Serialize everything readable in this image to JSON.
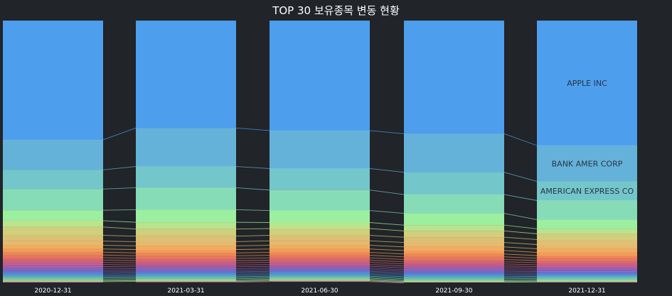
{
  "chart_data": {
    "type": "stacked-bar",
    "title": "TOP 30 보유종목 변동 현황",
    "categories": [
      "2020-12-31",
      "2021-03-31",
      "2021-06-30",
      "2021-09-30",
      "2021-12-31"
    ],
    "ylim": [
      0,
      1
    ],
    "value_unit": "share of portfolio",
    "series": [
      {
        "name": "APPLE INC",
        "color": "#4d9eed",
        "values": [
          0.455,
          0.41,
          0.42,
          0.432,
          0.477
        ],
        "show_label": true
      },
      {
        "name": "BANK AMER CORP",
        "color": "#64b2d9",
        "values": [
          0.115,
          0.147,
          0.145,
          0.147,
          0.137
        ],
        "show_label": true
      },
      {
        "name": "AMERICAN EXPRESS CO",
        "color": "#73c6ca",
        "values": [
          0.073,
          0.081,
          0.082,
          0.085,
          0.073
        ],
        "show_label": true
      },
      {
        "name": "",
        "color": "#86dcb6",
        "values": [
          0.081,
          0.084,
          0.078,
          0.072,
          0.073
        ]
      },
      {
        "name": "",
        "color": "#9bef9f",
        "values": [
          0.04,
          0.048,
          0.046,
          0.045,
          0.035
        ]
      },
      {
        "name": "",
        "color": "#b9e48d",
        "values": [
          0.024,
          0.026,
          0.023,
          0.022,
          0.019
        ]
      },
      {
        "name": "",
        "color": "#cfcf7c",
        "values": [
          0.032,
          0.027,
          0.026,
          0.024,
          0.022
        ]
      },
      {
        "name": "",
        "color": "#dcc073",
        "values": [
          0.022,
          0.021,
          0.021,
          0.02,
          0.019
        ]
      },
      {
        "name": "",
        "color": "#e8b86c",
        "values": [
          0.016,
          0.016,
          0.017,
          0.017,
          0.016
        ]
      },
      {
        "name": "",
        "color": "#f0ad5e",
        "values": [
          0.014,
          0.014,
          0.014,
          0.014,
          0.014
        ]
      },
      {
        "name": "",
        "color": "#f39b57",
        "values": [
          0.012,
          0.013,
          0.013,
          0.013,
          0.012
        ]
      },
      {
        "name": "",
        "color": "#ef8753",
        "values": [
          0.011,
          0.011,
          0.011,
          0.011,
          0.01
        ]
      },
      {
        "name": "",
        "color": "#e8765a",
        "values": [
          0.01,
          0.01,
          0.01,
          0.01,
          0.009
        ]
      },
      {
        "name": "",
        "color": "#df6867",
        "values": [
          0.009,
          0.009,
          0.009,
          0.009,
          0.008
        ]
      },
      {
        "name": "",
        "color": "#d35f77",
        "values": [
          0.009,
          0.008,
          0.008,
          0.008,
          0.008
        ]
      },
      {
        "name": "",
        "color": "#c35a89",
        "values": [
          0.008,
          0.008,
          0.008,
          0.008,
          0.007
        ]
      },
      {
        "name": "",
        "color": "#b0589b",
        "values": [
          0.008,
          0.007,
          0.007,
          0.007,
          0.007
        ]
      },
      {
        "name": "",
        "color": "#9b5aad",
        "values": [
          0.007,
          0.007,
          0.007,
          0.007,
          0.006
        ]
      },
      {
        "name": "",
        "color": "#845fbf",
        "values": [
          0.007,
          0.006,
          0.006,
          0.006,
          0.006
        ]
      },
      {
        "name": "",
        "color": "#6e69cd",
        "values": [
          0.006,
          0.006,
          0.006,
          0.006,
          0.005
        ]
      },
      {
        "name": "",
        "color": "#5a78d5",
        "values": [
          0.006,
          0.005,
          0.005,
          0.005,
          0.005
        ]
      },
      {
        "name": "",
        "color": "#4f8ad6",
        "values": [
          0.005,
          0.005,
          0.005,
          0.005,
          0.005
        ]
      },
      {
        "name": "",
        "color": "#4d9cd0",
        "values": [
          0.005,
          0.005,
          0.005,
          0.005,
          0.004
        ]
      },
      {
        "name": "",
        "color": "#52adc4",
        "values": [
          0.004,
          0.004,
          0.004,
          0.004,
          0.004
        ]
      },
      {
        "name": "",
        "color": "#5dbdb6",
        "values": [
          0.004,
          0.004,
          0.004,
          0.004,
          0.004
        ]
      },
      {
        "name": "",
        "color": "#6dcaa6",
        "values": [
          0.004,
          0.004,
          0.004,
          0.004,
          0.004
        ]
      },
      {
        "name": "",
        "color": "#82d596",
        "values": [
          0.004,
          0.004,
          0.004,
          0.003,
          0.003
        ]
      },
      {
        "name": "",
        "color": "#9ddc87",
        "values": [
          0.003,
          0.003,
          0.003,
          0.003,
          0.003
        ]
      },
      {
        "name": "",
        "color": "#bcdc7c",
        "values": [
          0.003,
          0.003,
          0.003,
          0.003,
          0.003
        ]
      },
      {
        "name": "",
        "color": "#c05fa8",
        "values": [
          0.003,
          0.003,
          0.003,
          0.003,
          0.003
        ]
      }
    ]
  }
}
